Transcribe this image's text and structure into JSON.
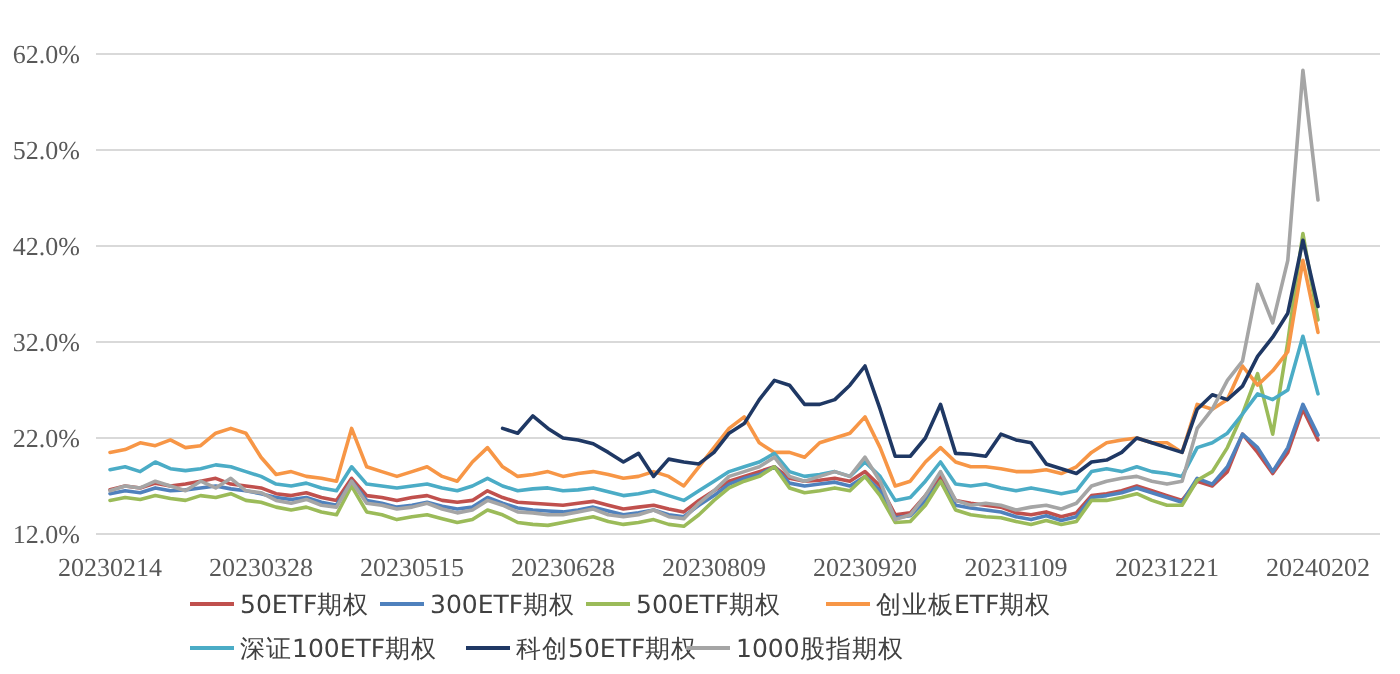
{
  "chart_data": {
    "type": "line",
    "categories": [
      "20230214",
      null,
      null,
      null,
      null,
      null,
      null,
      null,
      null,
      null,
      "20230328",
      null,
      null,
      null,
      null,
      null,
      null,
      null,
      null,
      null,
      "20230515",
      null,
      null,
      null,
      null,
      null,
      null,
      null,
      null,
      null,
      "20230628",
      null,
      null,
      null,
      null,
      null,
      null,
      null,
      null,
      null,
      "20230809",
      null,
      null,
      null,
      null,
      null,
      null,
      null,
      null,
      null,
      "20230920",
      null,
      null,
      null,
      null,
      null,
      null,
      null,
      null,
      null,
      "20231109",
      null,
      null,
      null,
      null,
      null,
      null,
      null,
      null,
      null,
      "20231221",
      null,
      null,
      null,
      null,
      null,
      null,
      null,
      null,
      null,
      "20240202"
    ],
    "ylim": [
      12,
      62
    ],
    "yticks": [
      {
        "value": 12,
        "label": "12.0%"
      },
      {
        "value": 22,
        "label": "22.0%"
      },
      {
        "value": 32,
        "label": "32.0%"
      },
      {
        "value": 42,
        "label": "42.0%"
      },
      {
        "value": 52,
        "label": "52.0%"
      },
      {
        "value": 62,
        "label": "62.0%"
      }
    ],
    "grid": "y",
    "legend": "bottom",
    "marker": "none",
    "line_style": "solid",
    "series": [
      {
        "name": "50ETF期权",
        "color": "#c0504d",
        "values": [
          16.6,
          17.0,
          16.8,
          17.3,
          17.0,
          17.2,
          17.5,
          17.8,
          17.2,
          17.0,
          16.8,
          16.2,
          16.0,
          16.3,
          15.8,
          15.5,
          17.8,
          16.0,
          15.8,
          15.5,
          15.8,
          16.0,
          15.5,
          15.3,
          15.5,
          16.5,
          15.8,
          15.3,
          15.2,
          15.1,
          15.0,
          15.2,
          15.4,
          15.0,
          14.6,
          14.8,
          15.0,
          14.6,
          14.3,
          15.5,
          16.5,
          17.5,
          18.0,
          18.5,
          19.0,
          17.8,
          17.5,
          17.6,
          17.8,
          17.5,
          18.5,
          17.0,
          14.0,
          14.2,
          16.0,
          18.0,
          15.5,
          15.2,
          15.0,
          14.8,
          14.2,
          14.0,
          14.3,
          13.8,
          14.2,
          16.0,
          16.2,
          16.5,
          17.0,
          16.5,
          16.0,
          15.5,
          17.5,
          17.0,
          18.5,
          22.4,
          20.5,
          18.3,
          20.5,
          25.0,
          21.8
        ]
      },
      {
        "name": "300ETF期权",
        "color": "#4f81bd",
        "values": [
          16.2,
          16.5,
          16.3,
          16.8,
          16.5,
          16.6,
          16.8,
          17.0,
          16.7,
          16.5,
          16.2,
          15.8,
          15.6,
          15.8,
          15.3,
          15.0,
          17.5,
          15.5,
          15.2,
          14.8,
          15.0,
          15.3,
          14.9,
          14.6,
          14.8,
          15.8,
          15.2,
          14.7,
          14.5,
          14.4,
          14.3,
          14.5,
          14.8,
          14.4,
          14.0,
          14.2,
          14.5,
          14.0,
          13.8,
          15.0,
          16.0,
          17.2,
          17.8,
          18.2,
          19.0,
          17.3,
          17.0,
          17.2,
          17.4,
          17.0,
          18.0,
          16.5,
          13.7,
          13.9,
          15.5,
          17.5,
          15.0,
          14.7,
          14.5,
          14.3,
          13.8,
          13.5,
          13.9,
          13.4,
          13.8,
          15.8,
          16.0,
          16.3,
          16.8,
          16.3,
          15.8,
          15.3,
          17.8,
          17.2,
          19.0,
          22.4,
          21.0,
          18.5,
          21.0,
          25.5,
          22.3
        ]
      },
      {
        "name": "500ETF期权",
        "color": "#9bbb59",
        "values": [
          15.5,
          15.8,
          15.6,
          16.0,
          15.7,
          15.5,
          16.0,
          15.8,
          16.2,
          15.5,
          15.3,
          14.8,
          14.5,
          14.8,
          14.3,
          14.0,
          17.0,
          14.3,
          14.0,
          13.5,
          13.8,
          14.0,
          13.6,
          13.2,
          13.5,
          14.5,
          14.0,
          13.2,
          13.0,
          12.9,
          13.2,
          13.5,
          13.8,
          13.3,
          13.0,
          13.2,
          13.5,
          13.0,
          12.8,
          14.0,
          15.5,
          16.8,
          17.5,
          18.0,
          19.0,
          16.8,
          16.3,
          16.5,
          16.8,
          16.5,
          18.0,
          16.0,
          13.2,
          13.3,
          15.0,
          17.5,
          14.5,
          14.0,
          13.8,
          13.7,
          13.3,
          13.0,
          13.4,
          13.0,
          13.3,
          15.5,
          15.5,
          15.8,
          16.2,
          15.5,
          15.0,
          15.0,
          17.6,
          18.5,
          21.0,
          24.5,
          28.7,
          22.4,
          32.0,
          43.3,
          34.3
        ]
      },
      {
        "name": "创业板ETF期权",
        "color": "#f79646",
        "values": [
          20.5,
          20.8,
          21.5,
          21.2,
          21.8,
          21.0,
          21.2,
          22.5,
          23.0,
          22.5,
          20.0,
          18.2,
          18.5,
          18.0,
          17.8,
          17.5,
          23.0,
          19.0,
          18.5,
          18.0,
          18.5,
          19.0,
          18.0,
          17.5,
          19.5,
          21.0,
          19.0,
          18.0,
          18.2,
          18.5,
          18.0,
          18.3,
          18.5,
          18.2,
          17.8,
          18.0,
          18.5,
          18.0,
          17.0,
          19.0,
          21.0,
          23.0,
          24.2,
          21.5,
          20.5,
          20.5,
          20.0,
          21.5,
          22.0,
          22.5,
          24.2,
          21.0,
          17.0,
          17.5,
          19.5,
          21.0,
          19.5,
          19.0,
          19.0,
          18.8,
          18.5,
          18.5,
          18.7,
          18.3,
          19.0,
          20.5,
          21.5,
          21.8,
          22.0,
          21.5,
          21.5,
          20.5,
          25.5,
          25.0,
          26.0,
          29.5,
          27.5,
          29.0,
          31.0,
          40.5,
          33.0
        ]
      },
      {
        "name": "深证100ETF期权",
        "color": "#4bacc6",
        "values": [
          18.7,
          19.0,
          18.5,
          19.5,
          18.8,
          18.6,
          18.8,
          19.2,
          19.0,
          18.5,
          18.0,
          17.2,
          17.0,
          17.3,
          16.8,
          16.5,
          19.0,
          17.2,
          17.0,
          16.8,
          17.0,
          17.2,
          16.8,
          16.5,
          17.0,
          17.8,
          17.0,
          16.5,
          16.7,
          16.8,
          16.5,
          16.6,
          16.8,
          16.4,
          16.0,
          16.2,
          16.5,
          16.0,
          15.5,
          16.5,
          17.5,
          18.5,
          19.0,
          19.5,
          20.4,
          18.5,
          18.0,
          18.2,
          18.5,
          18.0,
          19.5,
          18.0,
          15.5,
          15.8,
          17.5,
          19.5,
          17.2,
          17.0,
          17.2,
          16.8,
          16.5,
          16.8,
          16.5,
          16.2,
          16.5,
          18.5,
          18.8,
          18.5,
          19.0,
          18.5,
          18.3,
          18.0,
          21.0,
          21.5,
          22.5,
          24.5,
          26.6,
          26.0,
          27.0,
          32.6,
          26.6
        ]
      },
      {
        "name": "科创50ETF期权",
        "color": "#1f3864",
        "values": [
          null,
          null,
          null,
          null,
          null,
          null,
          null,
          null,
          null,
          null,
          null,
          null,
          null,
          null,
          null,
          null,
          null,
          null,
          null,
          null,
          null,
          null,
          null,
          null,
          null,
          null,
          23.0,
          22.5,
          24.3,
          23.0,
          22.0,
          21.8,
          21.4,
          20.5,
          19.5,
          20.4,
          18.0,
          19.8,
          19.5,
          19.3,
          20.5,
          22.5,
          23.5,
          26.0,
          28.0,
          27.5,
          25.5,
          25.5,
          26.0,
          27.5,
          29.5,
          25.0,
          20.1,
          20.1,
          22.0,
          25.5,
          20.4,
          20.3,
          20.1,
          22.4,
          21.8,
          21.5,
          19.3,
          18.8,
          18.3,
          19.5,
          19.7,
          20.5,
          22.0,
          21.5,
          21.0,
          20.5,
          25.0,
          26.5,
          26.0,
          27.4,
          30.5,
          32.5,
          35.0,
          42.6,
          35.7
        ]
      },
      {
        "name": "1000股指期权",
        "color": "#a5a5a5",
        "values": [
          16.5,
          17.0,
          16.8,
          17.5,
          17.0,
          16.5,
          17.5,
          16.8,
          17.8,
          16.5,
          16.3,
          15.5,
          15.2,
          15.6,
          15.0,
          14.8,
          17.5,
          15.2,
          15.0,
          14.6,
          14.8,
          15.2,
          14.6,
          14.2,
          14.5,
          15.5,
          15.0,
          14.3,
          14.2,
          14.0,
          14.0,
          14.3,
          14.6,
          14.0,
          13.8,
          14.0,
          14.5,
          13.8,
          13.6,
          15.2,
          16.5,
          18.0,
          18.5,
          19.0,
          20.0,
          18.0,
          17.5,
          18.0,
          18.5,
          18.0,
          20.0,
          17.5,
          13.5,
          14.0,
          16.0,
          18.5,
          15.5,
          15.0,
          15.2,
          15.0,
          14.5,
          14.8,
          15.0,
          14.6,
          15.2,
          17.0,
          17.5,
          17.8,
          18.0,
          17.5,
          17.2,
          17.5,
          23.0,
          25.0,
          28.0,
          30.0,
          38.0,
          34.0,
          40.5,
          60.3,
          46.8
        ]
      }
    ]
  }
}
